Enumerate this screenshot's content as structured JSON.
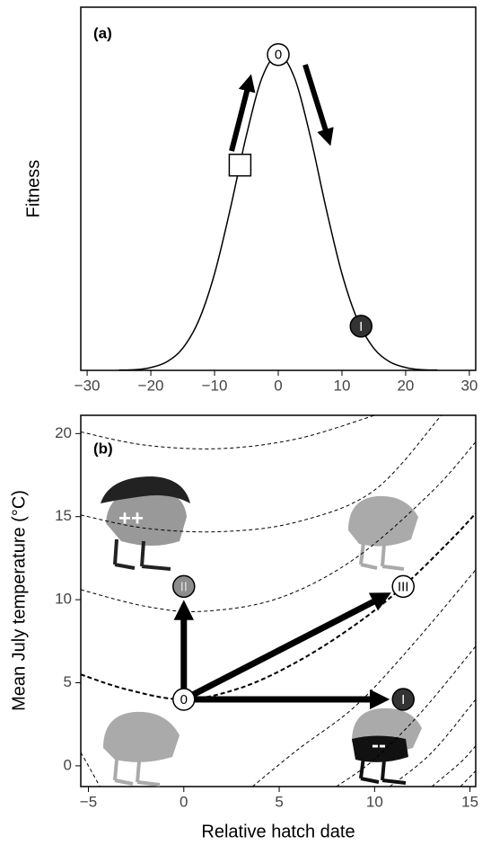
{
  "chart_data": [
    {
      "type": "line",
      "panel_label": "(a)",
      "y_label": "Fitness",
      "color": "#000000",
      "x": [
        -25,
        -22.5,
        -20,
        -17.5,
        -15,
        -12.5,
        -10,
        -7.5,
        -5,
        -2.5,
        0,
        2.5,
        5,
        7.5,
        10,
        12.5,
        15,
        17.5,
        20,
        22.5,
        25
      ],
      "values": [
        0.001,
        0.002,
        0.009,
        0.027,
        0.07,
        0.157,
        0.306,
        0.514,
        0.744,
        0.929,
        1,
        0.929,
        0.744,
        0.514,
        0.306,
        0.157,
        0.07,
        0.027,
        0.009,
        0.002,
        0.001
      ],
      "xlim": [
        -31,
        31
      ],
      "ylim": [
        0,
        1.15
      ],
      "xticks": [
        {
          "value": -30,
          "label": "−30"
        },
        {
          "value": -20,
          "label": "−20"
        },
        {
          "value": -10,
          "label": "−10"
        },
        0,
        10,
        20,
        30
      ],
      "points": [
        {
          "x": -6,
          "y": 0.65,
          "shape": "square",
          "fill": "#ffffff"
        },
        {
          "x": 0,
          "y": 1,
          "label": "0",
          "fill": "#ffffff",
          "text_color": "#000000"
        },
        {
          "x": 13,
          "y": 0.14,
          "label": "I",
          "fill": "#333333",
          "text_color": "#ffffff"
        }
      ]
    },
    {
      "type": "vector",
      "panel_label": "(b)",
      "x_label": "Relative hatch date",
      "y_label": "Mean July temperature (°C)",
      "xlim": [
        -5.4,
        15.3
      ],
      "ylim": [
        -1.25,
        21.1
      ],
      "xticks": [
        {
          "value": -5,
          "label": "−5"
        },
        0,
        5,
        10,
        15
      ],
      "yticks": [
        0,
        5,
        10,
        15,
        20
      ],
      "contours": [
        {
          "x": [
            -5.4,
            -2,
            2,
            6,
            10
          ],
          "y": [
            20.1,
            19.3,
            19.1,
            19.7,
            21.1
          ]
        },
        {
          "x": [
            -5.4,
            -2,
            2,
            6,
            10,
            13.5
          ],
          "y": [
            15.1,
            14.3,
            14.1,
            14.7,
            16.6,
            21.1
          ]
        },
        {
          "x": [
            -5.4,
            -2,
            1,
            5,
            9,
            13,
            15.3
          ],
          "y": [
            10.6,
            9.6,
            9.3,
            10.1,
            12.5,
            16.5,
            19.5
          ]
        },
        {
          "x": [
            -5.4,
            -3,
            0,
            3,
            6,
            9,
            11.5,
            14,
            15.3
          ],
          "y": [
            5.5,
            4.6,
            4,
            4.7,
            6.3,
            8.5,
            10.8,
            13.6,
            15.2
          ],
          "width": 2
        },
        {
          "x": [
            -5.4,
            -5,
            -4.4
          ],
          "y": [
            0.8,
            0,
            -1.25
          ]
        },
        {
          "x": [
            3.6,
            6,
            9,
            12,
            15.3
          ],
          "y": [
            -1.25,
            1,
            3.6,
            7.3,
            11.8
          ]
        },
        {
          "x": [
            8,
            10,
            12.5,
            15.3
          ],
          "y": [
            -1.25,
            0.4,
            3.3,
            7.2
          ]
        },
        {
          "x": [
            10.8,
            13,
            15.3
          ],
          "y": [
            -1.25,
            0.8,
            4
          ]
        },
        {
          "x": [
            13,
            14.5,
            15.3
          ],
          "y": [
            -1.25,
            0.2,
            1.2
          ]
        },
        {
          "x": [
            14.5,
            15.3
          ],
          "y": [
            -1.25,
            -0.3
          ]
        }
      ],
      "points": [
        {
          "x": 0,
          "y": 4,
          "label": "0",
          "fill": "#ffffff",
          "text_color": "#000000"
        },
        {
          "x": 0,
          "y": 10.8,
          "label": "II",
          "fill": "#8c8c8c",
          "text_color": "#dddddd",
          "arrow": true
        },
        {
          "x": 11.5,
          "y": 10.8,
          "label": "III",
          "fill": "#ffffff",
          "text_color": "#000000",
          "arrow": true
        },
        {
          "x": 11.5,
          "y": 4,
          "label": "I",
          "fill": "#333333",
          "text_color": "#ffffff",
          "arrow": true
        }
      ],
      "bird_marks": [
        "++",
        "--"
      ]
    }
  ]
}
